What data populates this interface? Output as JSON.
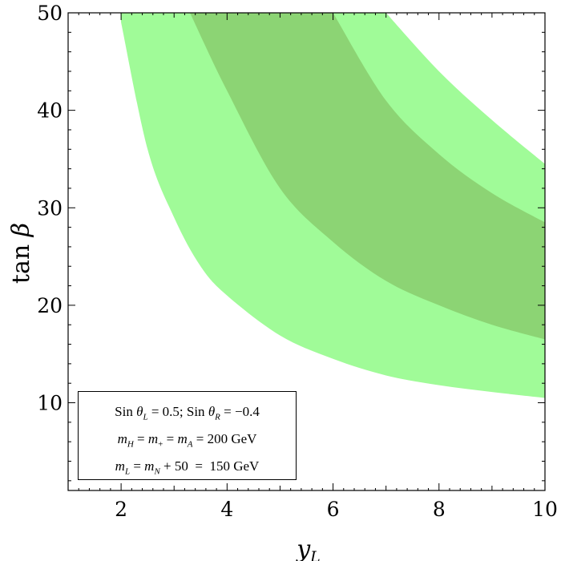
{
  "chart_data": {
    "type": "area",
    "xlabel": "y_L",
    "ylabel": "tan β",
    "xlim": [
      1,
      10
    ],
    "ylim": [
      1,
      50
    ],
    "x_ticks": [
      2,
      4,
      6,
      8,
      10
    ],
    "y_ticks": [
      10,
      20,
      30,
      40,
      50
    ],
    "grid": false,
    "series": [
      {
        "role": "outer-band",
        "color": "#a0fb98",
        "x": [
          2.0,
          2.5,
          3.0,
          3.5,
          4.0,
          5.0,
          6.0,
          7.0,
          8.0,
          9.0,
          10.0
        ],
        "lower": [
          49.0,
          36.0,
          29.0,
          24.0,
          21.0,
          16.9,
          14.5,
          12.8,
          11.8,
          11.1,
          10.5
        ],
        "upper": [
          null,
          null,
          null,
          null,
          null,
          null,
          null,
          50.0,
          44.0,
          39.0,
          34.5
        ]
      },
      {
        "role": "inner-band",
        "color": "#8cd474",
        "x": [
          3.3,
          4.0,
          5.0,
          6.0,
          7.0,
          8.0,
          9.0,
          10.0
        ],
        "lower": [
          50.0,
          42.0,
          32.0,
          26.5,
          22.5,
          20.0,
          18.0,
          16.5
        ],
        "upper": [
          null,
          null,
          null,
          50.0,
          41.0,
          35.5,
          31.5,
          28.5
        ]
      }
    ],
    "annotation": [
      "Sin θ_L = 0.5; Sin θ_R = −0.4",
      "m_H = m_+ = m_A = 200 GeV",
      "m_L = m_N + 50 = 150 GeV"
    ]
  }
}
